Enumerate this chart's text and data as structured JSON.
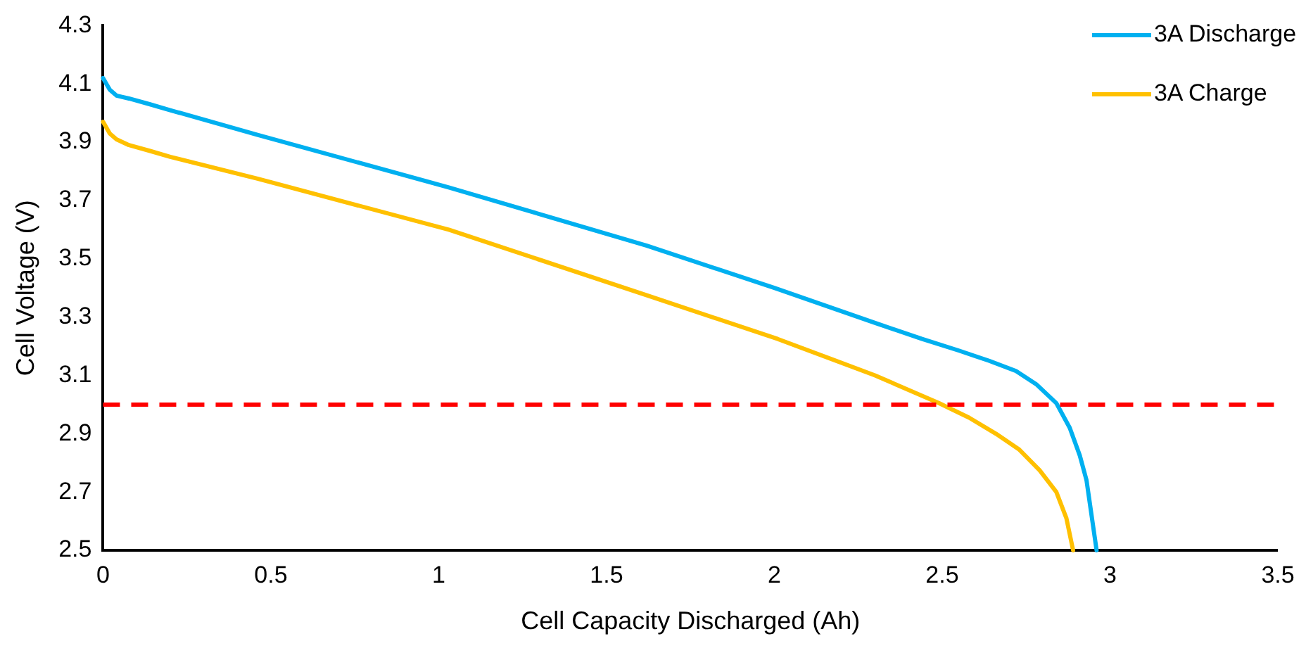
{
  "chart_data": {
    "type": "line",
    "xlabel": "Cell Capacity Discharged (Ah)",
    "ylabel": "Cell Voltage (V)",
    "xlim": [
      0,
      3.5
    ],
    "xticks": [
      0,
      0.5,
      1,
      1.5,
      2,
      2.5,
      3,
      3.5
    ],
    "ylim": [
      2.5,
      4.3
    ],
    "yticks": [
      {
        "value": 2.5,
        "label": "2.5"
      },
      {
        "value": 2.7,
        "label": "2.7"
      },
      {
        "value": 2.9,
        "label": "2.9"
      },
      {
        "value": 3.1,
        "label": "3.1"
      },
      {
        "value": 3.3,
        "label": "3.3"
      },
      {
        "value": 3.5,
        "label": "3.5"
      },
      {
        "value": 3.7,
        "label": "3.7"
      },
      {
        "value": 3.9,
        "label": "3.9"
      },
      {
        "value": 4.1,
        "label": "4.1"
      },
      {
        "value": 4.3,
        "label": "4.3"
      }
    ],
    "grid": false,
    "legend": "top right",
    "marker": "none",
    "line_style": "solid",
    "series": [
      {
        "name": "3A Discharge",
        "color": "#00b0f0",
        "x": [
          0,
          0.02,
          0.04,
          0.077,
          0.14,
          0.2,
          0.46,
          1.03,
          1.62,
          2.0,
          2.3,
          2.44,
          2.55,
          2.64,
          2.72,
          2.78,
          2.84,
          2.88,
          2.91,
          2.93,
          2.94,
          2.95,
          2.96
        ],
        "values": [
          4.12,
          4.08,
          4.06,
          4.05,
          4.03,
          4.01,
          3.925,
          3.745,
          3.545,
          3.4,
          3.28,
          3.225,
          3.185,
          3.15,
          3.115,
          3.07,
          3.005,
          2.92,
          2.825,
          2.74,
          2.66,
          2.58,
          2.5
        ]
      },
      {
        "name": "3A Charge",
        "color": "#ffc000",
        "x": [
          0,
          0.02,
          0.04,
          0.077,
          0.14,
          0.2,
          0.46,
          1.03,
          1.62,
          2.01,
          2.3,
          2.49,
          2.58,
          2.66,
          2.73,
          2.79,
          2.84,
          2.87,
          2.89
        ],
        "values": [
          3.97,
          3.93,
          3.91,
          3.89,
          3.87,
          3.85,
          3.775,
          3.6,
          3.375,
          3.225,
          3.1,
          3.005,
          2.955,
          2.9,
          2.845,
          2.775,
          2.7,
          2.61,
          2.5
        ]
      }
    ],
    "ref_lines": [
      {
        "axis": "y",
        "value": 3.0,
        "color": "#ff0000",
        "line_style": "dashed"
      }
    ]
  }
}
